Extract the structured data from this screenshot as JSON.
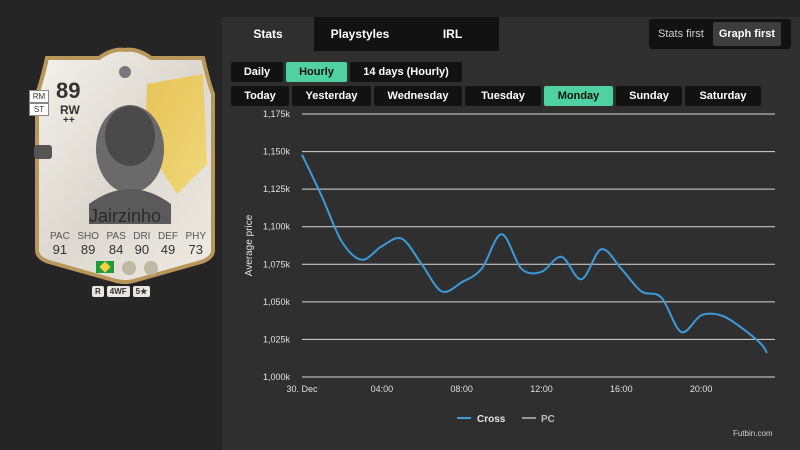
{
  "player": {
    "rating": "89",
    "alt_positions": [
      "RM",
      "ST"
    ],
    "position": "RW",
    "position_plus": "++",
    "name": "Jairzinho",
    "stat_labels": [
      "PAC",
      "SHO",
      "PAS",
      "DRI",
      "DEF",
      "PHY"
    ],
    "stat_values": [
      "91",
      "89",
      "84",
      "90",
      "49",
      "73"
    ],
    "badges": [
      "R",
      "4WF",
      "5★"
    ]
  },
  "tabs": [
    "Stats",
    "Playstyles",
    "IRL"
  ],
  "view_toggle": [
    "Stats first",
    "Graph first"
  ],
  "period_buttons": [
    "Daily",
    "Hourly",
    "14 days (Hourly)"
  ],
  "day_buttons": [
    "Today",
    "Yesterday",
    "Wednesday",
    "Tuesday",
    "Monday",
    "Sunday",
    "Saturday"
  ],
  "watermark": "Futbin.com",
  "colors": {
    "accent": "#4fd1a1",
    "line": "#3b9ad9",
    "pc_line": "#999999"
  },
  "chart_data": {
    "type": "line",
    "title": "",
    "xlabel": "",
    "ylabel": "Average price",
    "x_tick_labels": [
      "30. Dec",
      "04:00",
      "08:00",
      "12:00",
      "16:00",
      "20:00"
    ],
    "x_tick_hours": [
      0,
      4,
      8,
      12,
      16,
      20
    ],
    "y_tick_labels": [
      "1,000k",
      "1,025k",
      "1,050k",
      "1,075k",
      "1,100k",
      "1,125k",
      "1,150k",
      "1,175k"
    ],
    "y_tick_values": [
      1000000,
      1025000,
      1050000,
      1075000,
      1100000,
      1125000,
      1150000,
      1175000
    ],
    "ylim": [
      1000000,
      1175000
    ],
    "xlim": [
      0,
      23.7
    ],
    "grid": true,
    "legend_position": "bottom-center",
    "series": [
      {
        "name": "Cross",
        "x": [
          0,
          1,
          2,
          3,
          4,
          5,
          6,
          7,
          8,
          9,
          10,
          11,
          12,
          13,
          14,
          15,
          16,
          17,
          18,
          19,
          20,
          21,
          22,
          23,
          23.3
        ],
        "y": [
          1148000,
          1120000,
          1090000,
          1078000,
          1087000,
          1092000,
          1075000,
          1057000,
          1063000,
          1072000,
          1095000,
          1072000,
          1070000,
          1080000,
          1065000,
          1085000,
          1072000,
          1057000,
          1053000,
          1030000,
          1041000,
          1041000,
          1033000,
          1022000,
          1016000
        ]
      },
      {
        "name": "PC",
        "x": [],
        "y": []
      }
    ]
  }
}
